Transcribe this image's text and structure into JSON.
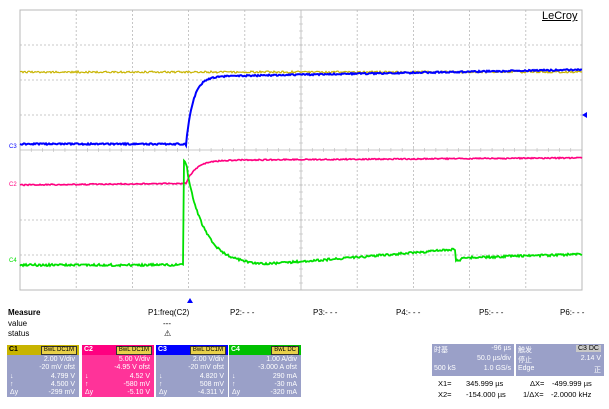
{
  "brand": "LeCroy",
  "colors": {
    "c1": "#c8b400",
    "c2": "#ff0080",
    "c3": "#0000ff",
    "c4": "#00e000",
    "grid": "#b8b8b8"
  },
  "trace_labels": {
    "c1": "C1",
    "c2": "C2",
    "c3": "C3",
    "c4": "C4"
  },
  "measure": {
    "header": "Measure",
    "value_label": "value",
    "status_label": "status",
    "p1": "P1:freq(C2)",
    "p1_value": "---",
    "p1_status": "⚠",
    "p2": "P2:- - -",
    "p3": "P3:- - -",
    "p4": "P4:- - -",
    "p5": "P5:- - -",
    "p6": "P6:- - -"
  },
  "channels": [
    {
      "name": "C1",
      "badge": "BwL DC1M",
      "vdiv": "2.00 V/div",
      "ofst": "-20 mV ofst",
      "low": "4.799 V",
      "high": "4.500 V",
      "delta": "-299 mV",
      "bg": "#9aa0c8",
      "headbg": "#c8b400"
    },
    {
      "name": "C2",
      "badge": "BwL DC1M",
      "vdiv": "5.00 V/div",
      "ofst": "-4.95 V ofst",
      "low": "4.52 V",
      "high": "-580 mV",
      "delta": "-5.10 V",
      "bg": "#ff3399",
      "headbg": "#ff0080"
    },
    {
      "name": "C3",
      "badge": "BwL DC1M",
      "vdiv": "2.00 V/div",
      "ofst": "-20 mV ofst",
      "low": "4.820 V",
      "high": "508 mV",
      "delta": "-4.311 V",
      "bg": "#9aa0c8",
      "headbg": "#0000ff"
    },
    {
      "name": "C4",
      "badge": "BwL DC",
      "vdiv": "1.00 A/div",
      "ofst": "-3.000 A ofst",
      "low": "290 mA",
      "high": "-30 mA",
      "delta": "-320 mA",
      "bg": "#9aa0c8",
      "headbg": "#00c000"
    }
  ],
  "symbols": {
    "low": "↓",
    "high": "↑",
    "delta": "Δy"
  },
  "timebase": {
    "label": "时基",
    "delay": "-96 µs",
    "tdiv": "50.0 µs/div",
    "samples": "500 kS",
    "rate": "1.0 GS/s"
  },
  "trigger": {
    "label": "触发",
    "badge": "C3 DC",
    "mode": "停止",
    "level": "2.14 V",
    "type": "Edge",
    "slope": "正"
  },
  "cursors": {
    "x1": "X1=",
    "x1_val": "345.999 µs",
    "dx": "ΔX=",
    "dx_val": "-499.999 µs",
    "x2": "X2=",
    "x2_val": "-154.000 µs",
    "inv_dx": "1/ΔX=",
    "inv_dx_val": "-2.0000 kHz"
  }
}
